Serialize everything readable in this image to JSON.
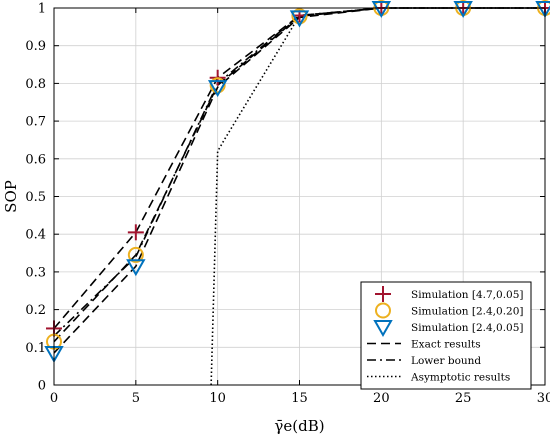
{
  "chart_data": {
    "type": "line",
    "title": "",
    "xlabel": "γ̄e(dB)",
    "ylabel": "SOP",
    "xlim": [
      0,
      30
    ],
    "ylim": [
      0,
      1
    ],
    "xticks": [
      0,
      5,
      10,
      15,
      20,
      25,
      30
    ],
    "yticks": [
      0,
      0.1,
      0.2,
      0.3,
      0.4,
      0.5,
      0.6,
      0.7,
      0.8,
      0.9,
      1
    ],
    "grid": true,
    "legend_position": "bottom-right",
    "series": [
      {
        "name": "Simulation [4.7,0.05]",
        "kind": "marker",
        "marker": "plus",
        "color": "#a2142f",
        "x": [
          0,
          5,
          10,
          15,
          20,
          25,
          30
        ],
        "y": [
          0.15,
          0.405,
          0.815,
          0.98,
          1.0,
          1.0,
          1.0
        ]
      },
      {
        "name": "Simulation [2.4,0.20]",
        "kind": "marker",
        "marker": "circle",
        "color": "#edb120",
        "x": [
          0,
          5,
          10,
          15,
          20,
          25,
          30
        ],
        "y": [
          0.115,
          0.345,
          0.795,
          0.978,
          1.0,
          1.0,
          1.0
        ]
      },
      {
        "name": "Simulation [2.4,0.05]",
        "kind": "marker",
        "marker": "triangle-down",
        "color": "#0072bd",
        "x": [
          0,
          5,
          10,
          15,
          20,
          25,
          30
        ],
        "y": [
          0.085,
          0.315,
          0.79,
          0.975,
          1.0,
          1.0,
          1.0
        ]
      },
      {
        "name": "Exact results",
        "kind": "line",
        "dash": "dashed",
        "color": "#000000",
        "x": [
          0,
          5,
          10,
          15,
          20,
          25,
          30
        ],
        "y": [
          0.15,
          0.405,
          0.815,
          0.98,
          1.0,
          1.0,
          1.0
        ]
      },
      {
        "name": "Exact results",
        "kind": "line",
        "dash": "dashed",
        "color": "#000000",
        "legend": false,
        "x": [
          0,
          5,
          10,
          15,
          20,
          25,
          30
        ],
        "y": [
          0.115,
          0.345,
          0.795,
          0.978,
          1.0,
          1.0,
          1.0
        ]
      },
      {
        "name": "Exact results",
        "kind": "line",
        "dash": "dashed",
        "color": "#000000",
        "legend": false,
        "x": [
          0,
          5,
          10,
          15,
          20,
          25,
          30
        ],
        "y": [
          0.085,
          0.315,
          0.79,
          0.975,
          1.0,
          1.0,
          1.0
        ]
      },
      {
        "name": "Lower bound",
        "kind": "line",
        "dash": "dashdot",
        "color": "#000000",
        "x": [
          0,
          5,
          10,
          15,
          20,
          25,
          30
        ],
        "y": [
          0.13,
          0.34,
          0.8,
          0.98,
          1.0,
          1.0,
          1.0
        ]
      },
      {
        "name": "Asymptotic results",
        "kind": "line",
        "dash": "dotted",
        "color": "#000000",
        "x": [
          9.6,
          10.0,
          10.4,
          15,
          20,
          25,
          30
        ],
        "y": [
          0.0,
          0.62,
          0.65,
          0.98,
          1.0,
          1.0,
          1.0
        ]
      }
    ]
  }
}
